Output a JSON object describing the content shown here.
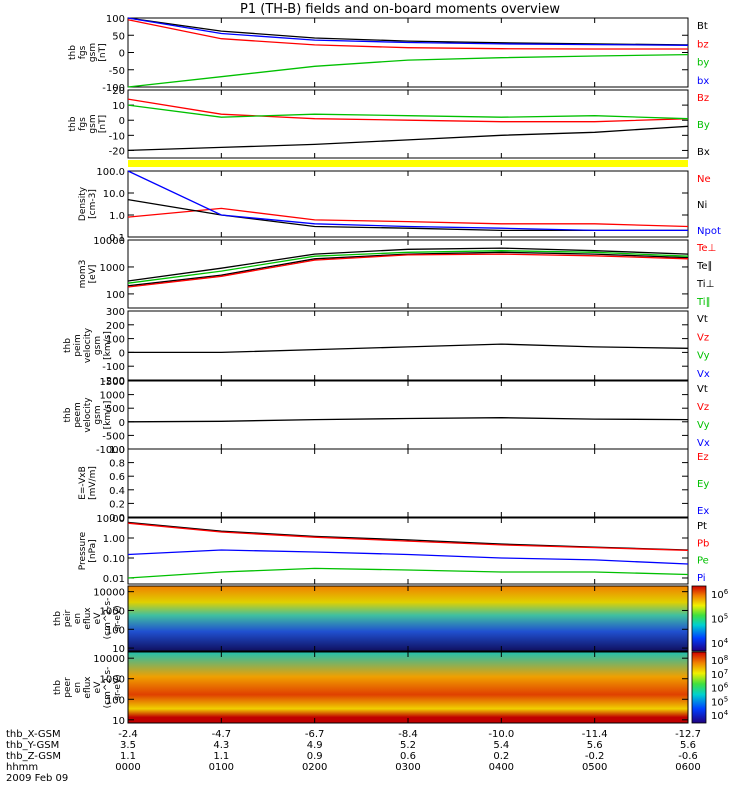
{
  "title": "P1 (TH-B) fields and on-board moments overview",
  "colors": {
    "black": "#000000",
    "red": "#ff0000",
    "green": "#00c000",
    "blue": "#0000ff",
    "yellow": "#ffff00"
  },
  "panels": [
    {
      "id": "bfield-mag",
      "ylabel": [
        "thb",
        "fgs",
        "gsm",
        "[nT]"
      ],
      "scale": "linear",
      "yrange": [
        -100,
        100
      ],
      "ticks": [
        "100",
        "50",
        "0",
        "-50",
        "-100"
      ],
      "tick_values": [
        100,
        50,
        0,
        -50,
        -100
      ],
      "legend": [
        {
          "text": "Bt",
          "color": "#000000"
        },
        {
          "text": "bz",
          "color": "#ff0000"
        },
        {
          "text": "by",
          "color": "#00c000"
        },
        {
          "text": "bx",
          "color": "#0000ff"
        }
      ]
    },
    {
      "id": "bfield-zoom",
      "ylabel": [
        "thb",
        "fgs",
        "gsm",
        "[nT]"
      ],
      "scale": "linear",
      "yrange": [
        -25,
        20
      ],
      "ticks": [
        "20",
        "10",
        "0",
        "-10",
        "-20"
      ],
      "tick_values": [
        20,
        10,
        0,
        -10,
        -20
      ],
      "legend": [
        {
          "text": "Bz",
          "color": "#ff0000"
        },
        {
          "text": "By",
          "color": "#00c000"
        },
        {
          "text": "Bx",
          "color": "#000000"
        }
      ]
    },
    {
      "id": "density",
      "ylabel": [
        "Density",
        "[cm-3]"
      ],
      "scale": "log",
      "yrange": [
        0.1,
        100
      ],
      "ticks": [
        "100.0",
        "10.0",
        "1.0",
        "0.1"
      ],
      "tick_values": [
        100,
        10,
        1,
        0.1
      ],
      "legend": [
        {
          "text": "Ne",
          "color": "#ff0000"
        },
        {
          "text": "Ni",
          "color": "#000000"
        },
        {
          "text": "Npot",
          "color": "#0000ff"
        }
      ]
    },
    {
      "id": "temperature",
      "ylabel": [
        "mom3",
        "[eV]"
      ],
      "scale": "log",
      "yrange": [
        30,
        10000
      ],
      "ticks": [
        "10000",
        "1000",
        "100"
      ],
      "tick_values": [
        10000,
        1000,
        100
      ],
      "legend": [
        {
          "text": "Te⊥",
          "color": "#ff0000"
        },
        {
          "text": "Te∥",
          "color": "#000000"
        },
        {
          "text": "Ti⊥",
          "color": "#000000"
        },
        {
          "text": "Ti∥",
          "color": "#00c000"
        }
      ]
    },
    {
      "id": "ion-velocity",
      "ylabel": [
        "thb",
        "peim",
        "velocity",
        "gsm",
        "[km/s]"
      ],
      "scale": "linear",
      "yrange": [
        -200,
        300
      ],
      "ticks": [
        "300",
        "200",
        "100",
        "0",
        "-100",
        "-200"
      ],
      "tick_values": [
        300,
        200,
        100,
        0,
        -100,
        -200
      ],
      "legend": [
        {
          "text": "Vt",
          "color": "#000000"
        },
        {
          "text": "Vz",
          "color": "#ff0000"
        },
        {
          "text": "Vy",
          "color": "#00c000"
        },
        {
          "text": "Vx",
          "color": "#0000ff"
        }
      ]
    },
    {
      "id": "electron-velocity",
      "ylabel": [
        "thb",
        "peem",
        "velocity",
        "gsm",
        "[km/s]"
      ],
      "scale": "linear",
      "yrange": [
        -1000,
        1500
      ],
      "ticks": [
        "1500",
        "1000",
        "500",
        "0",
        "-500",
        "-1000"
      ],
      "tick_values": [
        1500,
        1000,
        500,
        0,
        -500,
        -1000
      ],
      "legend": [
        {
          "text": "Vt",
          "color": "#000000"
        },
        {
          "text": "Vz",
          "color": "#ff0000"
        },
        {
          "text": "Vy",
          "color": "#00c000"
        },
        {
          "text": "Vx",
          "color": "#0000ff"
        }
      ]
    },
    {
      "id": "efield",
      "ylabel": [
        "E=-VxB",
        "[mV/m]"
      ],
      "scale": "linear",
      "yrange": [
        0,
        1
      ],
      "ticks": [
        "1.0",
        "0.8",
        "0.6",
        "0.4",
        "0.2",
        "0.0"
      ],
      "tick_values": [
        1.0,
        0.8,
        0.6,
        0.4,
        0.2,
        0.0
      ],
      "legend": [
        {
          "text": "Ez",
          "color": "#ff0000"
        },
        {
          "text": "Ey",
          "color": "#00c000"
        },
        {
          "text": "Ex",
          "color": "#0000ff"
        }
      ]
    },
    {
      "id": "pressure",
      "ylabel": [
        "Pressure",
        "[nPa]"
      ],
      "scale": "log",
      "yrange": [
        0.005,
        10
      ],
      "ticks": [
        "10.00",
        "1.00",
        "0.10",
        "0.01"
      ],
      "tick_values": [
        10,
        1,
        0.1,
        0.01
      ],
      "legend": [
        {
          "text": "Pt",
          "color": "#000000"
        },
        {
          "text": "Pb",
          "color": "#ff0000"
        },
        {
          "text": "Pe",
          "color": "#00c000"
        },
        {
          "text": "Pi",
          "color": "#0000ff"
        }
      ]
    },
    {
      "id": "ion-spectrogram",
      "ylabel": [
        "thb",
        "peir",
        "en",
        "eflux",
        "eV",
        "(cm^2-s-",
        "sr-eV)"
      ],
      "scale": "log",
      "yrange": [
        7,
        20000
      ],
      "ticks": [
        "10000",
        "1000",
        "100",
        "10"
      ],
      "tick_values": [
        10000,
        1000,
        100,
        10
      ],
      "colorbar_ticks": [
        "10^6",
        "10^5",
        "10^4"
      ]
    },
    {
      "id": "electron-spectrogram",
      "ylabel": [
        "thb",
        "peer",
        "en",
        "eflux",
        "eV",
        "(cm^2-s-",
        "sr-eV)"
      ],
      "scale": "log",
      "yrange": [
        7,
        20000
      ],
      "ticks": [
        "10000",
        "1000",
        "100",
        "10"
      ],
      "tick_values": [
        10000,
        1000,
        100,
        10
      ],
      "colorbar_ticks": [
        "10^8",
        "10^7",
        "10^6",
        "10^5",
        "10^4"
      ]
    }
  ],
  "xaxis": {
    "rows": [
      {
        "label": "thb_X-GSM",
        "values": [
          "-2.4",
          "-4.7",
          "-6.7",
          "-8.4",
          "-10.0",
          "-11.4",
          "-12.7"
        ]
      },
      {
        "label": "thb_Y-GSM",
        "values": [
          "3.5",
          "4.3",
          "4.9",
          "5.2",
          "5.4",
          "5.6",
          "5.6"
        ]
      },
      {
        "label": "thb_Z-GSM",
        "values": [
          "1.1",
          "1.1",
          "0.9",
          "0.6",
          "0.2",
          "-0.2",
          "-0.6"
        ]
      },
      {
        "label": "hhmm",
        "values": [
          "0000",
          "0100",
          "0200",
          "0300",
          "0400",
          "0500",
          "0600"
        ]
      }
    ],
    "date": "2009 Feb 09"
  },
  "chart_data": {
    "type": "line",
    "title": "P1 (TH-B) fields and on-board moments overview",
    "x": [
      "0000",
      "0100",
      "0200",
      "0300",
      "0400",
      "0500",
      "0600"
    ],
    "xlabel": "hhmm",
    "date": "2009 Feb 09",
    "series": [
      {
        "name": "Bt",
        "panel": "bfield-mag",
        "values": [
          100,
          62,
          42,
          33,
          28,
          25,
          22
        ]
      },
      {
        "name": "bz",
        "panel": "bfield-mag",
        "values": [
          95,
          40,
          22,
          14,
          11,
          10,
          10
        ]
      },
      {
        "name": "bx",
        "panel": "bfield-mag",
        "values": [
          110,
          55,
          36,
          29,
          25,
          23,
          21
        ]
      },
      {
        "name": "by",
        "panel": "bfield-mag",
        "values": [
          -120,
          -70,
          -40,
          -22,
          -15,
          -10,
          -6
        ]
      },
      {
        "name": "Bz",
        "panel": "bfield-zoom",
        "values": [
          14,
          4,
          1,
          0,
          -1,
          -1,
          1
        ]
      },
      {
        "name": "By",
        "panel": "bfield-zoom",
        "values": [
          10,
          2,
          4,
          3,
          2,
          3,
          1
        ]
      },
      {
        "name": "Bx",
        "panel": "bfield-zoom",
        "values": [
          -20,
          -18,
          -16,
          -13,
          -10,
          -8,
          -4
        ]
      },
      {
        "name": "Ne",
        "panel": "density",
        "values": [
          0.8,
          2.0,
          0.6,
          0.5,
          0.4,
          0.4,
          0.3
        ]
      },
      {
        "name": "Ni",
        "panel": "density",
        "values": [
          5,
          1.0,
          0.3,
          0.25,
          0.2,
          0.2,
          0.2
        ]
      },
      {
        "name": "Npot",
        "panel": "density",
        "values": [
          100,
          1.0,
          0.4,
          0.3,
          0.25,
          0.2,
          0.2
        ]
      },
      {
        "name": "Te∥",
        "panel": "temperature",
        "values": [
          300,
          900,
          3000,
          4500,
          5000,
          4000,
          3000
        ]
      },
      {
        "name": "Ti⊥",
        "panel": "temperature",
        "values": [
          200,
          500,
          2000,
          3000,
          3500,
          3000,
          2200
        ]
      },
      {
        "name": "Ti∥",
        "panel": "temperature",
        "values": [
          250,
          700,
          2500,
          3500,
          4000,
          3500,
          2500
        ]
      },
      {
        "name": "Te⊥",
        "panel": "temperature",
        "values": [
          180,
          450,
          1800,
          2800,
          3000,
          2600,
          2000
        ]
      },
      {
        "name": "Vt",
        "panel": "ion-velocity",
        "values": [
          0,
          0,
          20,
          40,
          60,
          40,
          30
        ]
      },
      {
        "name": "Vt",
        "panel": "electron-velocity",
        "values": [
          0,
          20,
          80,
          120,
          150,
          100,
          80
        ]
      },
      {
        "name": "Pt",
        "panel": "pressure",
        "values": [
          6,
          2.2,
          1.2,
          0.8,
          0.5,
          0.35,
          0.25
        ]
      },
      {
        "name": "Pb",
        "panel": "pressure",
        "values": [
          5.5,
          2.0,
          1.1,
          0.7,
          0.45,
          0.33,
          0.24
        ]
      },
      {
        "name": "Pi",
        "panel": "pressure",
        "values": [
          0.15,
          0.25,
          0.2,
          0.15,
          0.1,
          0.08,
          0.05
        ]
      },
      {
        "name": "Pe",
        "panel": "pressure",
        "values": [
          0.01,
          0.02,
          0.03,
          0.025,
          0.02,
          0.02,
          0.015
        ]
      }
    ]
  }
}
